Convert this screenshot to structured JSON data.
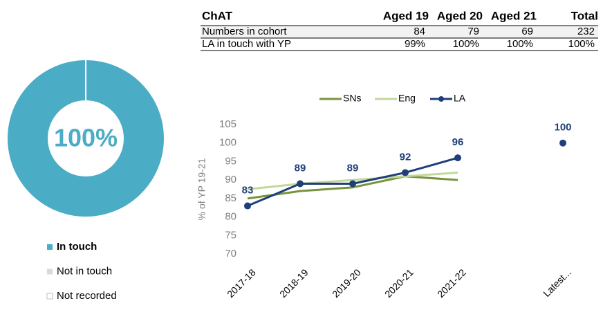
{
  "table": {
    "header": [
      "ChAT",
      "Aged 19",
      "Aged 20",
      "Aged 21",
      "Total"
    ],
    "rows": [
      [
        "Numbers in cohort",
        "84",
        "79",
        "69",
        "232"
      ],
      [
        "LA in touch with YP",
        "99%",
        "100%",
        "100%",
        "100%"
      ]
    ]
  },
  "chart_data": [
    {
      "type": "pie",
      "center_label": "100%",
      "categories": [
        "In touch",
        "Not in touch",
        "Not recorded"
      ],
      "values": [
        100,
        0,
        0
      ],
      "colors": [
        "#4bacc6",
        "#d9d9d9",
        "#ffffff"
      ]
    },
    {
      "type": "line",
      "y_label": "% of YP 19-21",
      "categories": [
        "2017-18",
        "2018-19",
        "2019-20",
        "2020-21",
        "2021-22",
        null,
        "Latest..."
      ],
      "series": [
        {
          "name": "SNs",
          "color": "#76933c",
          "values": [
            85,
            87,
            88,
            91,
            90,
            null,
            null
          ]
        },
        {
          "name": "Eng",
          "color": "#c4d79b",
          "values": [
            87.5,
            89,
            90,
            91,
            92,
            null,
            null
          ]
        },
        {
          "name": "LA",
          "color": "#1f3f77",
          "values": [
            83,
            89,
            89,
            92,
            96,
            null,
            100
          ],
          "data_labels": true
        }
      ],
      "ylim": [
        70,
        105
      ],
      "yticks": [
        70,
        75,
        80,
        85,
        90,
        95,
        100,
        105
      ],
      "legend": "top"
    }
  ]
}
